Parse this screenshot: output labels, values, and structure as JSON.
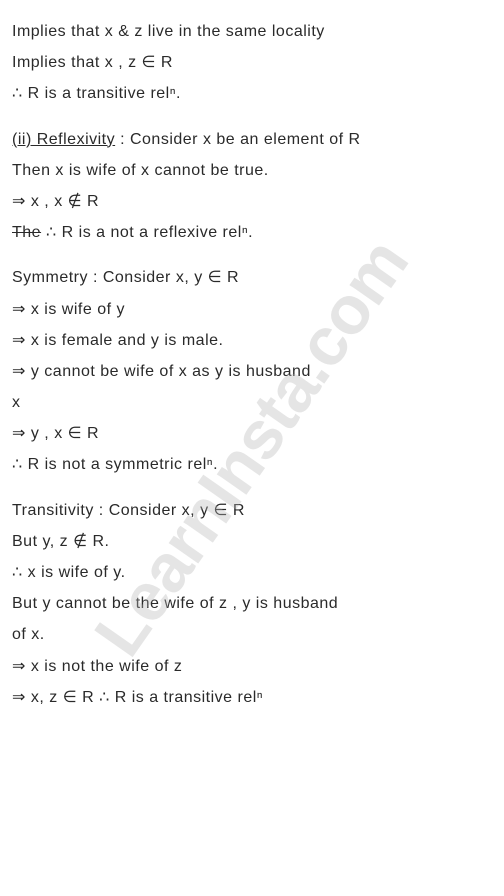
{
  "watermark": "LearnInsta.com",
  "lines": {
    "l1": "Implies that x & z live in the same locality",
    "l2": "Implies that x , z ∈ R",
    "l3": "∴ R is a transitive relⁿ.",
    "l4a": "(ii) Reflexivity",
    "l4b": " : Consider x be an element of R",
    "l5": "Then x is wife of x cannot be true.",
    "l6": "⇒ x , x ∉ R",
    "l7a": "The",
    "l7b": " ∴ R is a not a reflexive relⁿ.",
    "l8": "Symmetry : Consider x, y ∈ R",
    "l9": "⇒ x is wife of y",
    "l10": "⇒ x is female and y is male.",
    "l11": "⇒ y cannot be wife of x as y is husband",
    "l12": "    x",
    "l13": "⇒ y , x ∈ R",
    "l14": "∴ R is not a symmetric relⁿ.",
    "l15": "Transitivity : Consider x, y ∈ R",
    "l16": "But y, z ∉ R.",
    "l17": "∴ x is wife of y.",
    "l18": "But y cannot be the wife of z , y is husband",
    "l19": "of x.",
    "l20": "⇒ x is not the wife of z",
    "l21": "⇒ x, z ∈ R ∴ R is a transitive relⁿ"
  }
}
